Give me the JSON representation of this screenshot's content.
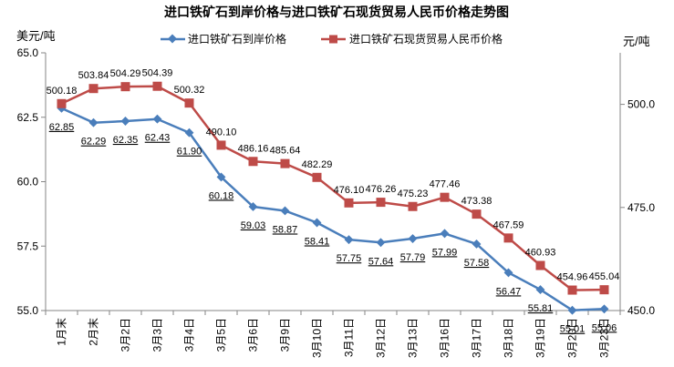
{
  "chart_data": {
    "type": "line",
    "title": "进口铁矿石到岸价格与进口铁矿石现货贸易人民币价格走势图",
    "ylabel_left": "美元/吨",
    "ylabel_right": "元/吨",
    "xlabel": "",
    "ylim_left": [
      55.0,
      65.0
    ],
    "ylim_right": [
      450.0,
      512.5
    ],
    "yticks_left": [
      "55.0",
      "57.5",
      "60.0",
      "62.5",
      "65.0"
    ],
    "yticks_right": [
      "450.0",
      "475.0",
      "500.0"
    ],
    "categories": [
      "1月末",
      "2月末",
      "3月2日",
      "3月3日",
      "3月4日",
      "3月5日",
      "3月6日",
      "3月9日",
      "3月10日",
      "3月11日",
      "3月12日",
      "3月13日",
      "3月16日",
      "3月17日",
      "3月18日",
      "3月19日",
      "3月20日",
      "3月23日"
    ],
    "legend_position": "top",
    "grid": false,
    "series": [
      {
        "name": "进口铁矿石到岸价格",
        "axis": "left",
        "color": "#4a7ebb",
        "marker": "diamond",
        "values": [
          62.85,
          62.29,
          62.35,
          62.43,
          61.9,
          60.18,
          59.03,
          58.87,
          58.41,
          57.75,
          57.64,
          57.79,
          57.99,
          57.58,
          56.47,
          55.81,
          55.01,
          55.06
        ],
        "labels": [
          "62.85",
          "62.29",
          "62.35",
          "62.43",
          "61.90",
          "60.18",
          "59.03",
          "58.87",
          "58.41",
          "57.75",
          "57.64",
          "57.79",
          "57.99",
          "57.58",
          "56.47",
          "55.81",
          "55.01",
          "55.06"
        ]
      },
      {
        "name": "进口铁矿石现货贸易人民币价格",
        "axis": "right",
        "color": "#be4b48",
        "marker": "square",
        "values": [
          500.18,
          503.84,
          504.29,
          504.39,
          500.32,
          490.1,
          486.16,
          485.64,
          482.29,
          476.1,
          476.26,
          475.23,
          477.46,
          473.38,
          467.59,
          460.93,
          454.96,
          455.04
        ],
        "labels": [
          "500.18",
          "503.84",
          "504.29",
          "504.39",
          "500.32",
          "490.10",
          "486.16",
          "485.64",
          "482.29",
          "476.10",
          "476.26",
          "475.23",
          "477.46",
          "473.38",
          "467.59",
          "460.93",
          "454.96",
          "455.04"
        ]
      }
    ]
  }
}
